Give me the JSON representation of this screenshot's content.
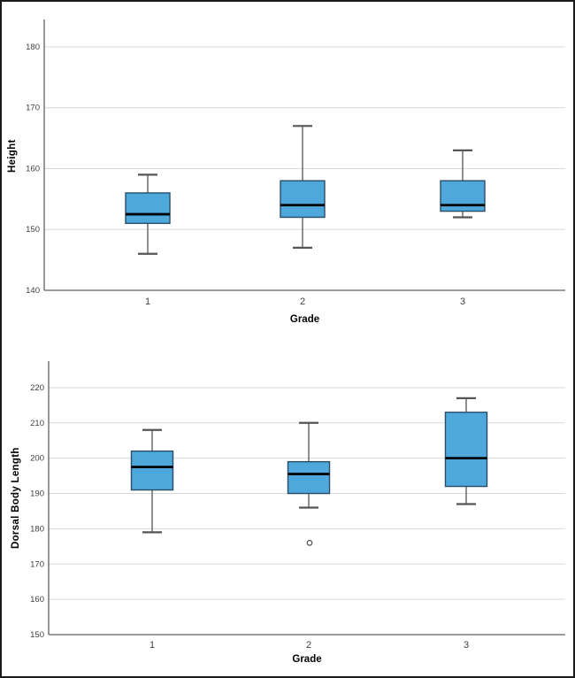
{
  "colors": {
    "box_fill": "#4FA8DC",
    "box_border": "#2B4C66",
    "median_line": "#000000",
    "whisker": "#555555",
    "grid_line": "#D9D9D9",
    "axis_line": "#616161",
    "tick_text": "#3F3F3F",
    "outlier": "#444444",
    "frame_border": "#1A1A1A",
    "background": "#FFFFFF"
  },
  "chart_data": [
    {
      "type": "boxplot",
      "title": "",
      "xlabel": "Grade",
      "ylabel": "Height",
      "categories": [
        "1",
        "2",
        "3"
      ],
      "yticks": [
        140,
        150,
        160,
        170,
        180
      ],
      "ylim": [
        140,
        184.5
      ],
      "grid": true,
      "legend": "none",
      "series": [
        {
          "category": "1",
          "whisker_low": 146,
          "q1": 151,
          "median": 152.5,
          "q3": 156,
          "whisker_high": 159,
          "outliers": []
        },
        {
          "category": "2",
          "whisker_low": 147,
          "q1": 152,
          "median": 154,
          "q3": 158,
          "whisker_high": 167,
          "outliers": []
        },
        {
          "category": "3",
          "whisker_low": 152,
          "q1": 153,
          "median": 154,
          "q3": 158,
          "whisker_high": 163,
          "outliers": []
        }
      ]
    },
    {
      "type": "boxplot",
      "title": "",
      "xlabel": "Grade",
      "ylabel": "Dorsal Body Length",
      "categories": [
        "1",
        "2",
        "3"
      ],
      "yticks": [
        150,
        160,
        170,
        180,
        190,
        200,
        210,
        220
      ],
      "ylim": [
        150,
        227.5
      ],
      "grid": true,
      "legend": "none",
      "series": [
        {
          "category": "1",
          "whisker_low": 179,
          "q1": 191,
          "median": 197.5,
          "q3": 202,
          "whisker_high": 208,
          "outliers": []
        },
        {
          "category": "2",
          "whisker_low": 186,
          "q1": 190,
          "median": 195.5,
          "q3": 199,
          "whisker_high": 210,
          "outliers": [
            176
          ]
        },
        {
          "category": "3",
          "whisker_low": 187,
          "q1": 192,
          "median": 200,
          "q3": 213,
          "whisker_high": 217,
          "outliers": []
        }
      ]
    }
  ]
}
